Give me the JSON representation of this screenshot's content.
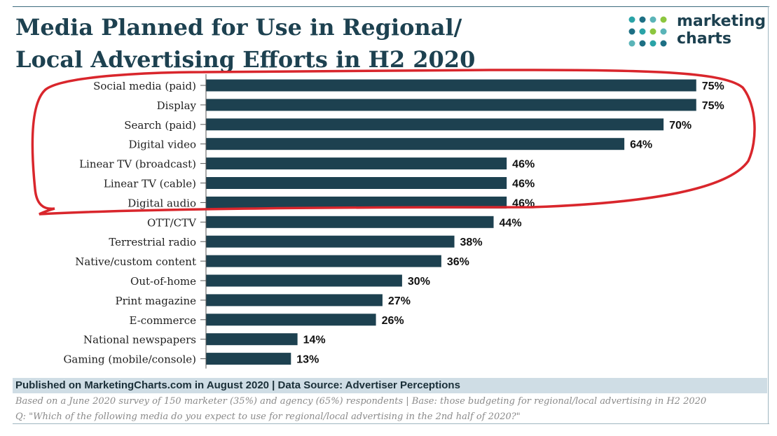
{
  "header": {
    "title_line1": "Media Planned for Use in Regional/",
    "title_line2": "Local Advertising Efforts in H2 2020"
  },
  "logo": {
    "line1": "marketing",
    "line2": "charts",
    "dot_colors": [
      "#2aa3a7",
      "#1d6f84",
      "#8cc63f",
      "#5ab4b8"
    ]
  },
  "colors": {
    "bar": "#1d4150",
    "annotation": "#d9262c",
    "footer_band": "#cfdde5"
  },
  "chart_data": {
    "type": "bar",
    "orientation": "horizontal",
    "title": "Media Planned for Use in Regional/ Local Advertising Efforts in H2 2020",
    "categories": [
      "Social media (paid)",
      "Display",
      "Search (paid)",
      "Digital video",
      "Linear TV (broadcast)",
      "Linear TV (cable)",
      "Digital audio",
      "OTT/CTV",
      "Terrestrial radio",
      "Native/custom content",
      "Out-of-home",
      "Print magazine",
      "E-commerce",
      "National newspapers",
      "Gaming (mobile/console)"
    ],
    "values": [
      75,
      75,
      70,
      64,
      46,
      46,
      46,
      44,
      38,
      36,
      30,
      27,
      26,
      14,
      13
    ],
    "value_labels": [
      "75%",
      "75%",
      "70%",
      "64%",
      "46%",
      "46%",
      "46%",
      "44%",
      "38%",
      "36%",
      "30%",
      "27%",
      "26%",
      "14%",
      "13%"
    ],
    "unit": "%",
    "xlim": [
      0,
      100
    ],
    "grid": false,
    "annotation": "red hand-drawn loop around the top 7 categories"
  },
  "footer": {
    "published": "Published on MarketingCharts.com in August 2020 | Data Source: Advertiser Perceptions",
    "note1": "Based on a June 2020 survey of 150 marketer (35%) and agency (65%) respondents | Base: those budgeting for regional/local advertising in H2 2020",
    "note2": "Q: \"Which of the following media do you expect to use for regional/local advertising in the 2nd half of 2020?\""
  }
}
